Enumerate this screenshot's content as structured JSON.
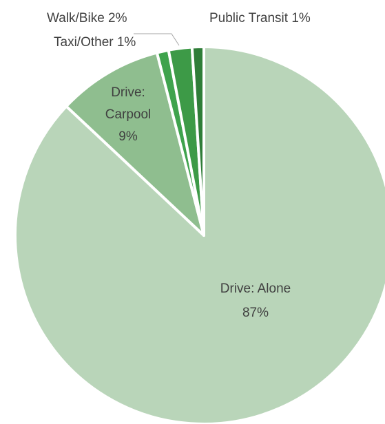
{
  "chart_data": {
    "type": "pie",
    "title": "",
    "start_angle_deg": 0,
    "direction": "clockwise",
    "slices": [
      {
        "label": "Drive: Alone",
        "value": 87,
        "display": "87%",
        "color": "#b9d5b9"
      },
      {
        "label": "Drive: Carpool",
        "value": 9,
        "display": "9%",
        "color": "#8fbe8f"
      },
      {
        "label": "Taxi/Other",
        "value": 1,
        "display": "1%",
        "color": "#3fa34d"
      },
      {
        "label": "Walk/Bike",
        "value": 2,
        "display": "2%",
        "color": "#3d9a47"
      },
      {
        "label": "Public Transit",
        "value": 1,
        "display": "1%",
        "color": "#2f7d38"
      }
    ],
    "label_lines": {
      "drive_alone": [
        "Drive: Alone",
        "87%"
      ],
      "drive_carpool": [
        "Drive:",
        "Carpool",
        "9%"
      ],
      "walk_bike": "Walk/Bike 2%",
      "taxi_other": "Taxi/Other 1%",
      "public_transit": "Public Transit 1%"
    },
    "slice_border_color": "#ffffff",
    "leader_line_color": "#a6a6a6"
  }
}
